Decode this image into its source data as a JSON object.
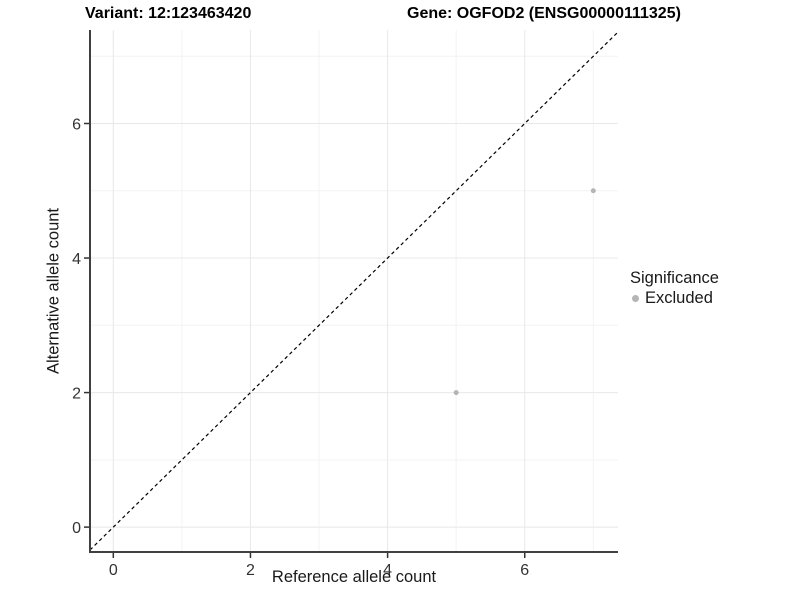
{
  "chart_data": {
    "type": "scatter",
    "title_left": "Variant: 12:123463420",
    "title_right": "Gene: OGFOD2 (ENSG00000111325)",
    "xlabel": "Reference allele count",
    "ylabel": "Alternative allele count",
    "xlim": [
      -0.34,
      7.36
    ],
    "ylim": [
      -0.37,
      7.39
    ],
    "x_ticks": [
      0,
      2,
      4,
      6
    ],
    "y_ticks": [
      0,
      2,
      4,
      6
    ],
    "x_minor": [
      1,
      3,
      5,
      7
    ],
    "y_minor": [
      1,
      3,
      5,
      7
    ],
    "grid": true,
    "series": [
      {
        "name": "Excluded",
        "color": "#b5b5b5",
        "points": [
          [
            5,
            2
          ],
          [
            7,
            5
          ]
        ]
      }
    ],
    "reference_line": {
      "type": "identity",
      "style": "dashed",
      "color": "#000000"
    },
    "legend": {
      "position": "right",
      "title": "Significance",
      "entries": [
        {
          "label": "Excluded",
          "color": "#b5b5b5"
        }
      ]
    },
    "colors": {
      "axis_line": "#404040",
      "tick_mark": "#333333",
      "tick_label": "#333333",
      "grid_major": "#e8e8e8",
      "grid_minor": "#f3f3f3",
      "background": "#ffffff"
    }
  }
}
